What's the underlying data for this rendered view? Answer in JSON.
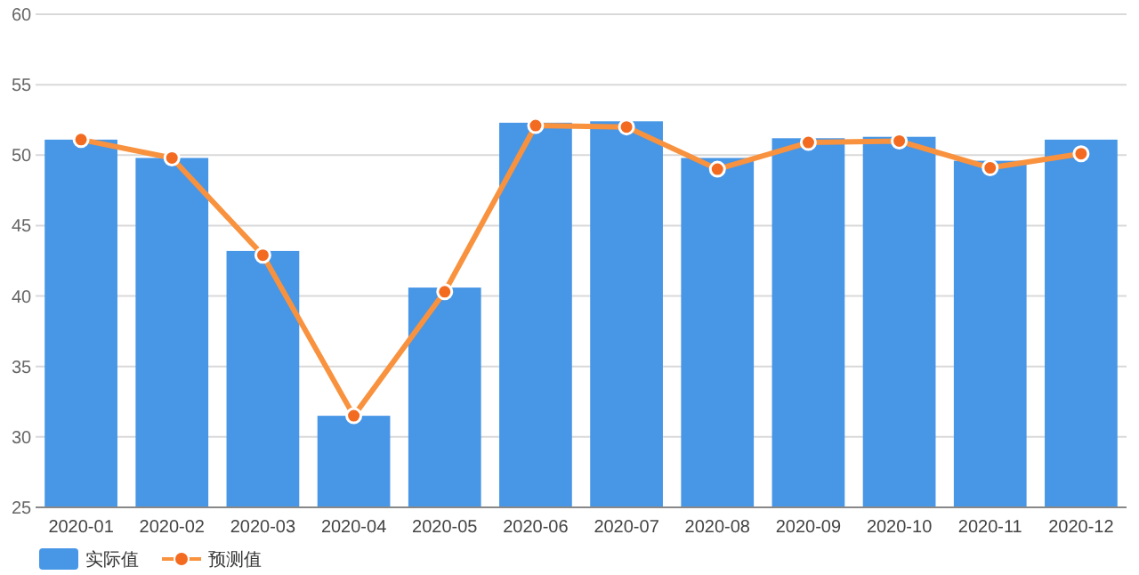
{
  "chart_data": {
    "type": "bar",
    "categories": [
      "2020-01",
      "2020-02",
      "2020-03",
      "2020-04",
      "2020-05",
      "2020-06",
      "2020-07",
      "2020-08",
      "2020-09",
      "2020-10",
      "2020-11",
      "2020-12"
    ],
    "series": [
      {
        "name": "实际值",
        "color": "#4896e6",
        "values": [
          51.1,
          49.8,
          43.2,
          31.5,
          40.6,
          52.3,
          52.4,
          49.8,
          51.2,
          51.3,
          49.6,
          51.1
        ]
      },
      {
        "name": "预测值",
        "type": "line",
        "color": "#f9923e",
        "marker": "circle",
        "values": [
          51.1,
          49.8,
          42.9,
          31.5,
          40.3,
          52.1,
          52.0,
          49.0,
          50.9,
          51.0,
          49.1,
          50.1
        ]
      }
    ],
    "ylim": [
      25,
      60
    ],
    "yticks": [
      25,
      30,
      35,
      40,
      45,
      50,
      55,
      60
    ],
    "grid": "y",
    "legend": "bottom left"
  }
}
